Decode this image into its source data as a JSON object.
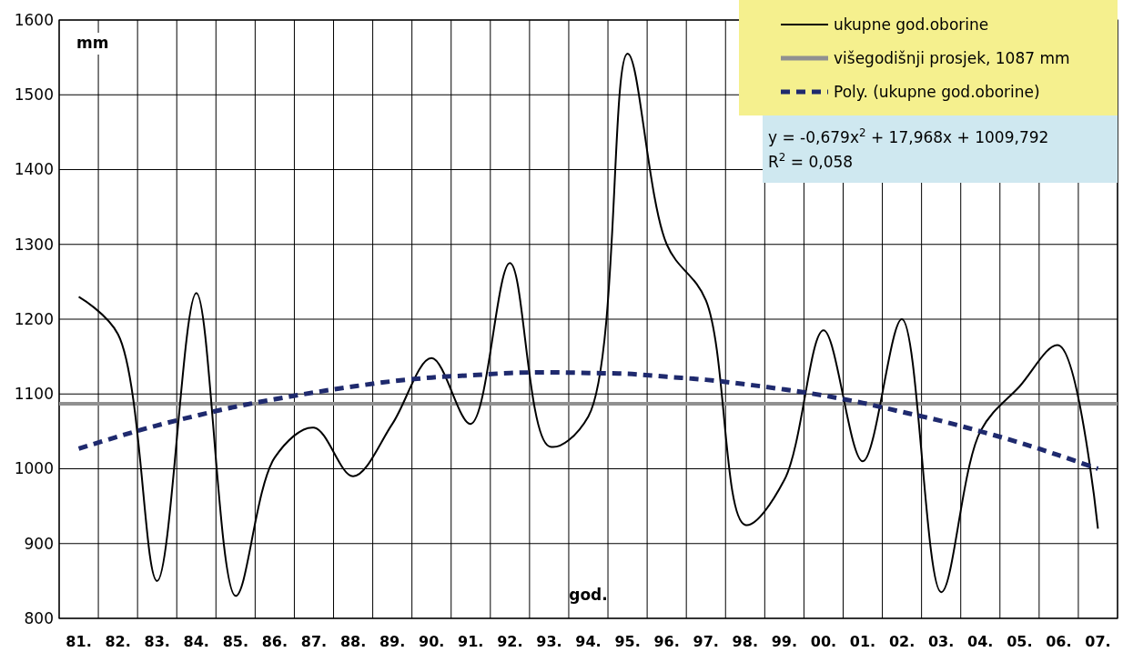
{
  "chart_data": {
    "type": "line",
    "categories": [
      "81.",
      "82.",
      "83.",
      "84.",
      "85.",
      "86.",
      "87.",
      "88.",
      "89.",
      "90.",
      "91.",
      "92.",
      "93.",
      "94.",
      "95.",
      "96.",
      "97.",
      "98.",
      "99.",
      "00.",
      "01.",
      "02.",
      "03.",
      "04.",
      "05.",
      "06.",
      "07."
    ],
    "xlabel": "god.",
    "ylabel": "mm",
    "ylim": [
      800,
      1600
    ],
    "yticks": [
      800,
      900,
      1000,
      1100,
      1200,
      1300,
      1400,
      1500,
      1600
    ],
    "grid": true,
    "legend": "top right",
    "marker": "none",
    "series": [
      {
        "name": "ukupne god.oborine",
        "color": "#000000",
        "line_style": "solid",
        "values": [
          1230,
          1180,
          850,
          1235,
          830,
          1015,
          1055,
          990,
          1060,
          1148,
          1060,
          1275,
          1030,
          1070,
          1555,
          1300,
          1225,
          925,
          985,
          1185,
          1010,
          1200,
          835,
          1050,
          1110,
          1165,
          920
        ]
      },
      {
        "name": "Poly. (ukupne god.oborine)",
        "color": "#1f2a6e",
        "line_style": "dashed",
        "values": [
          1027,
          1043,
          1058,
          1071,
          1083,
          1093,
          1102,
          1110,
          1117,
          1122,
          1125,
          1128,
          1129,
          1128,
          1127,
          1123,
          1119,
          1113,
          1106,
          1098,
          1088,
          1076,
          1064,
          1050,
          1035,
          1018,
          1000
        ]
      }
    ],
    "ref_lines": [
      {
        "axis": "y",
        "value": 1087,
        "label": "višegodišnji prosjek, 1087 mm",
        "color": "#909090"
      }
    ],
    "annotations": [
      "y = -0,679x$^{2}$ + 17,968x + 1009,792",
      "R$^{2}$ = 0,058"
    ]
  }
}
